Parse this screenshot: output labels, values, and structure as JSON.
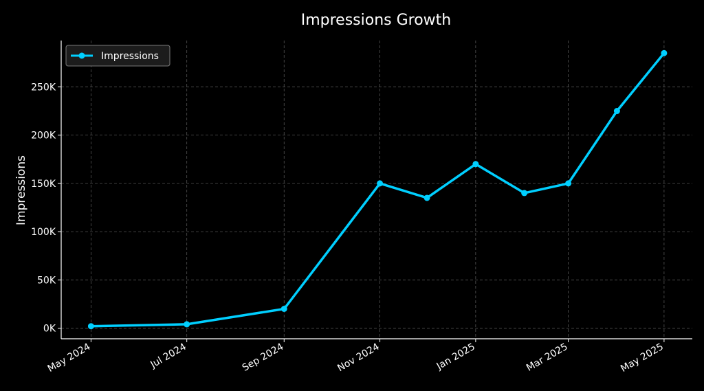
{
  "chart_data": {
    "type": "line",
    "title": "Impressions Growth",
    "xlabel": "",
    "ylabel": "Impressions",
    "x": [
      "2024-05-01",
      "2024-07-01",
      "2024-09-01",
      "2024-11-01",
      "2024-12-01",
      "2025-01-01",
      "2025-02-01",
      "2025-03-01",
      "2025-04-01",
      "2025-05-01"
    ],
    "x_ticks": [
      "2024-05-01",
      "2024-07-01",
      "2024-09-01",
      "2024-11-01",
      "2025-01-01",
      "2025-03-01",
      "2025-05-01"
    ],
    "x_tick_labels": [
      "May 2024",
      "Jul 2024",
      "Sep 2024",
      "Nov 2024",
      "Jan 2025",
      "Mar 2025",
      "May 2025"
    ],
    "y_ticks": [
      0,
      50000,
      100000,
      150000,
      200000,
      250000
    ],
    "y_tick_labels": [
      "0K",
      "50K",
      "100K",
      "150K",
      "200K",
      "250K"
    ],
    "ylim": [
      -11000,
      298000
    ],
    "xlim": [
      "2024-04-12",
      "2025-05-19"
    ],
    "grid": true,
    "legend_position": "top-left",
    "series": [
      {
        "name": "Impressions",
        "color": "#00cfff",
        "values": [
          2000,
          4000,
          20000,
          150000,
          135000,
          170000,
          140000,
          150000,
          225000,
          285000
        ]
      }
    ]
  },
  "colors": {
    "background": "#000000",
    "foreground": "#ffffff",
    "grid": "#555555",
    "line": "#00cfff"
  }
}
